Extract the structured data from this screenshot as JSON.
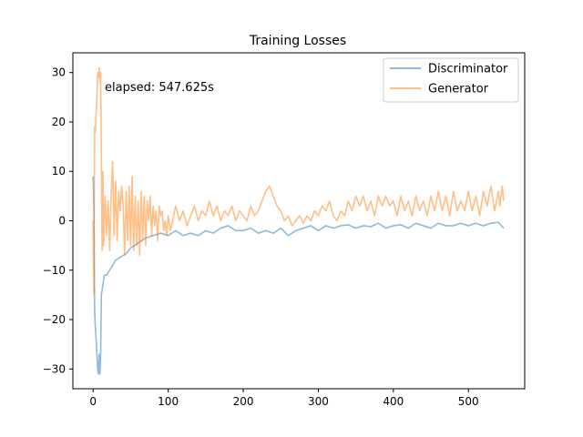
{
  "chart_data": {
    "type": "line",
    "title": "Training Losses",
    "xlabel": "",
    "ylabel": "",
    "xlim": [
      -27,
      575
    ],
    "ylim": [
      -34,
      34
    ],
    "xticks": [
      0,
      100,
      200,
      300,
      400,
      500
    ],
    "yticks": [
      -30,
      -20,
      -10,
      0,
      10,
      20,
      30
    ],
    "grid": false,
    "legend_position": "top-right",
    "annotation": "elapsed: 547.625s",
    "series": [
      {
        "name": "Discriminator",
        "color": "#1f77b4",
        "points": [
          [
            0,
            9
          ],
          [
            1,
            3
          ],
          [
            2,
            -18
          ],
          [
            3,
            -22
          ],
          [
            4,
            -24
          ],
          [
            5,
            -27
          ],
          [
            6,
            -30
          ],
          [
            7,
            -31
          ],
          [
            8,
            -27
          ],
          [
            9,
            -31
          ],
          [
            10,
            -27
          ],
          [
            11,
            -15
          ],
          [
            13,
            -13
          ],
          [
            15,
            -11
          ],
          [
            18,
            -11
          ],
          [
            22,
            -10
          ],
          [
            26,
            -9
          ],
          [
            30,
            -8
          ],
          [
            35,
            -7.5
          ],
          [
            40,
            -7
          ],
          [
            45,
            -6.5
          ],
          [
            50,
            -5.5
          ],
          [
            55,
            -5
          ],
          [
            60,
            -4.5
          ],
          [
            65,
            -4
          ],
          [
            70,
            -3.5
          ],
          [
            80,
            -3
          ],
          [
            90,
            -2.5
          ],
          [
            100,
            -3
          ],
          [
            110,
            -2
          ],
          [
            120,
            -3
          ],
          [
            130,
            -2.5
          ],
          [
            140,
            -3
          ],
          [
            150,
            -2
          ],
          [
            160,
            -2.5
          ],
          [
            170,
            -1.5
          ],
          [
            180,
            -1
          ],
          [
            190,
            -2
          ],
          [
            200,
            -2
          ],
          [
            210,
            -1.5
          ],
          [
            220,
            -2.5
          ],
          [
            230,
            -2
          ],
          [
            240,
            -2.5
          ],
          [
            250,
            -1.5
          ],
          [
            260,
            -3
          ],
          [
            270,
            -2
          ],
          [
            280,
            -1.5
          ],
          [
            290,
            -1
          ],
          [
            300,
            -2
          ],
          [
            310,
            -1
          ],
          [
            320,
            -1.5
          ],
          [
            330,
            -1
          ],
          [
            340,
            -0.8
          ],
          [
            350,
            -1.5
          ],
          [
            360,
            -1
          ],
          [
            370,
            -1.2
          ],
          [
            380,
            -0.5
          ],
          [
            390,
            -1.5
          ],
          [
            400,
            -1
          ],
          [
            410,
            -0.8
          ],
          [
            420,
            -1.5
          ],
          [
            430,
            -0.5
          ],
          [
            440,
            -1
          ],
          [
            450,
            -1.5
          ],
          [
            460,
            -0.5
          ],
          [
            470,
            -1
          ],
          [
            480,
            -1
          ],
          [
            490,
            -0.5
          ],
          [
            500,
            -1
          ],
          [
            510,
            -0.5
          ],
          [
            520,
            -1
          ],
          [
            530,
            -0.5
          ],
          [
            540,
            -0.3
          ],
          [
            547,
            -1.5
          ]
        ]
      },
      {
        "name": "Generator",
        "color": "#ff7f0e",
        "points": [
          [
            0,
            0
          ],
          [
            1,
            -15
          ],
          [
            2,
            19
          ],
          [
            3,
            18
          ],
          [
            4,
            22
          ],
          [
            5,
            25
          ],
          [
            6,
            30
          ],
          [
            7,
            29
          ],
          [
            8,
            31
          ],
          [
            9,
            28
          ],
          [
            10,
            30
          ],
          [
            11,
            12
          ],
          [
            12,
            -6
          ],
          [
            13,
            10
          ],
          [
            14,
            -5
          ],
          [
            16,
            5
          ],
          [
            18,
            -3
          ],
          [
            20,
            4
          ],
          [
            22,
            -6
          ],
          [
            24,
            5
          ],
          [
            26,
            12
          ],
          [
            28,
            -3
          ],
          [
            30,
            8
          ],
          [
            32,
            -4
          ],
          [
            34,
            6
          ],
          [
            36,
            2
          ],
          [
            38,
            7
          ],
          [
            40,
            3
          ],
          [
            42,
            -7
          ],
          [
            44,
            6
          ],
          [
            46,
            -4
          ],
          [
            48,
            7
          ],
          [
            50,
            -5
          ],
          [
            52,
            9
          ],
          [
            54,
            -6
          ],
          [
            56,
            5
          ],
          [
            58,
            -5
          ],
          [
            60,
            4
          ],
          [
            62,
            -7
          ],
          [
            64,
            6
          ],
          [
            66,
            -4
          ],
          [
            68,
            5
          ],
          [
            70,
            -5
          ],
          [
            72,
            4
          ],
          [
            74,
            0
          ],
          [
            76,
            5
          ],
          [
            78,
            -3
          ],
          [
            80,
            3
          ],
          [
            82,
            -1
          ],
          [
            84,
            2
          ],
          [
            86,
            -4
          ],
          [
            88,
            3
          ],
          [
            90,
            1
          ],
          [
            92,
            2
          ],
          [
            94,
            -2
          ],
          [
            96,
            0
          ],
          [
            98,
            -3
          ],
          [
            100,
            1
          ],
          [
            103,
            -2
          ],
          [
            106,
            0
          ],
          [
            110,
            3
          ],
          [
            115,
            0
          ],
          [
            120,
            2
          ],
          [
            125,
            -1
          ],
          [
            130,
            1
          ],
          [
            135,
            3
          ],
          [
            140,
            0
          ],
          [
            145,
            2
          ],
          [
            150,
            1
          ],
          [
            155,
            4
          ],
          [
            160,
            1
          ],
          [
            165,
            3
          ],
          [
            170,
            0
          ],
          [
            175,
            2
          ],
          [
            180,
            1
          ],
          [
            185,
            3
          ],
          [
            190,
            0
          ],
          [
            195,
            2
          ],
          [
            200,
            1
          ],
          [
            205,
            0
          ],
          [
            210,
            3
          ],
          [
            215,
            1
          ],
          [
            220,
            2
          ],
          [
            225,
            4
          ],
          [
            230,
            6
          ],
          [
            235,
            7
          ],
          [
            240,
            5
          ],
          [
            245,
            3
          ],
          [
            250,
            2
          ],
          [
            255,
            0
          ],
          [
            260,
            1
          ],
          [
            265,
            -1
          ],
          [
            270,
            0
          ],
          [
            275,
            1
          ],
          [
            280,
            -0.5
          ],
          [
            285,
            1
          ],
          [
            290,
            0
          ],
          [
            295,
            2
          ],
          [
            300,
            1
          ],
          [
            305,
            3
          ],
          [
            310,
            2
          ],
          [
            315,
            4
          ],
          [
            320,
            1
          ],
          [
            325,
            0
          ],
          [
            330,
            2
          ],
          [
            335,
            1
          ],
          [
            340,
            4
          ],
          [
            345,
            2
          ],
          [
            350,
            5
          ],
          [
            355,
            3
          ],
          [
            360,
            5
          ],
          [
            365,
            2
          ],
          [
            370,
            4
          ],
          [
            375,
            1
          ],
          [
            380,
            5
          ],
          [
            385,
            3
          ],
          [
            390,
            5
          ],
          [
            395,
            3
          ],
          [
            400,
            4
          ],
          [
            405,
            1
          ],
          [
            410,
            5
          ],
          [
            415,
            2
          ],
          [
            420,
            4
          ],
          [
            425,
            1
          ],
          [
            430,
            5
          ],
          [
            435,
            2
          ],
          [
            440,
            4
          ],
          [
            445,
            1
          ],
          [
            450,
            5
          ],
          [
            455,
            2
          ],
          [
            460,
            6
          ],
          [
            465,
            2
          ],
          [
            470,
            5
          ],
          [
            475,
            1
          ],
          [
            480,
            6
          ],
          [
            485,
            2
          ],
          [
            490,
            4
          ],
          [
            495,
            2
          ],
          [
            500,
            6
          ],
          [
            505,
            2
          ],
          [
            510,
            5
          ],
          [
            515,
            1
          ],
          [
            520,
            6
          ],
          [
            525,
            3
          ],
          [
            530,
            7
          ],
          [
            535,
            2
          ],
          [
            540,
            6
          ],
          [
            542,
            3
          ],
          [
            545,
            7
          ],
          [
            547,
            4
          ]
        ]
      }
    ]
  }
}
